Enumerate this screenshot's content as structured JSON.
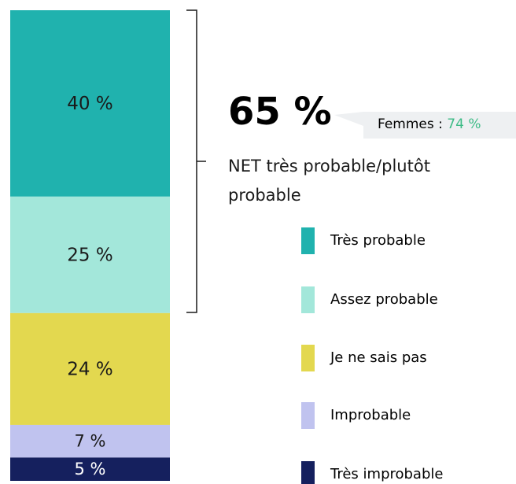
{
  "chart_data": {
    "type": "stacked_bar",
    "series": [
      {
        "name": "Très probable",
        "color": "#20b2ae",
        "values": [
          40
        ],
        "value_labels": [
          "40 %"
        ]
      },
      {
        "name": "Assez probable",
        "color": "#a3e7da",
        "values": [
          25
        ],
        "value_labels": [
          "25 %"
        ]
      },
      {
        "name": "Je ne sais pas",
        "color": "#e3d84f",
        "values": [
          24
        ],
        "value_labels": [
          "24 %"
        ]
      },
      {
        "name": "Improbable",
        "color": "#c0c3ef",
        "values": [
          7
        ],
        "value_labels": [
          "7 %"
        ]
      },
      {
        "name": "Très improbable",
        "color": "#15205e",
        "values": [
          5
        ],
        "value_labels": [
          "5 %"
        ]
      }
    ],
    "annotations": {
      "net_value": "65 %",
      "net_label": "NET très probable/plutôt probable",
      "callout_prefix": "Femmes :",
      "callout_value": "74 %",
      "callout_value_color": "#3dbb86"
    }
  }
}
